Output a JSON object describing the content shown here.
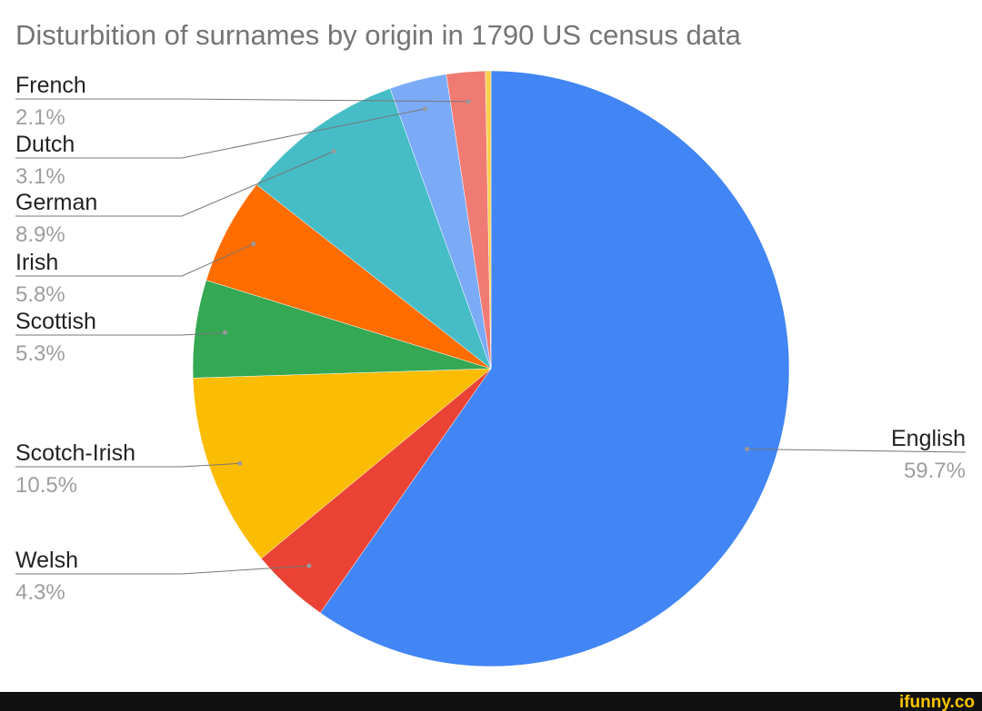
{
  "chart_data": {
    "type": "pie",
    "title": "Disturbition of surnames by origin in 1790 US census data",
    "categories": [
      "English",
      "Welsh",
      "Scotch-Irish",
      "Scottish",
      "Irish",
      "German",
      "Dutch",
      "French",
      null
    ],
    "values": [
      59.7,
      4.3,
      10.5,
      5.3,
      5.8,
      8.9,
      3.1,
      2.1,
      0.3
    ],
    "value_labels": [
      "59.7%",
      "4.3%",
      "10.5%",
      "5.3%",
      "5.8%",
      "8.9%",
      "3.1%",
      "2.1%",
      null
    ],
    "colors": [
      "#4285f4",
      "#ea4335",
      "#fbbc04",
      "#34a853",
      "#ff6d01",
      "#46bdc6",
      "#7baaf7",
      "#f07b72",
      "#fcd04f"
    ]
  },
  "watermark": "ifunny.co"
}
